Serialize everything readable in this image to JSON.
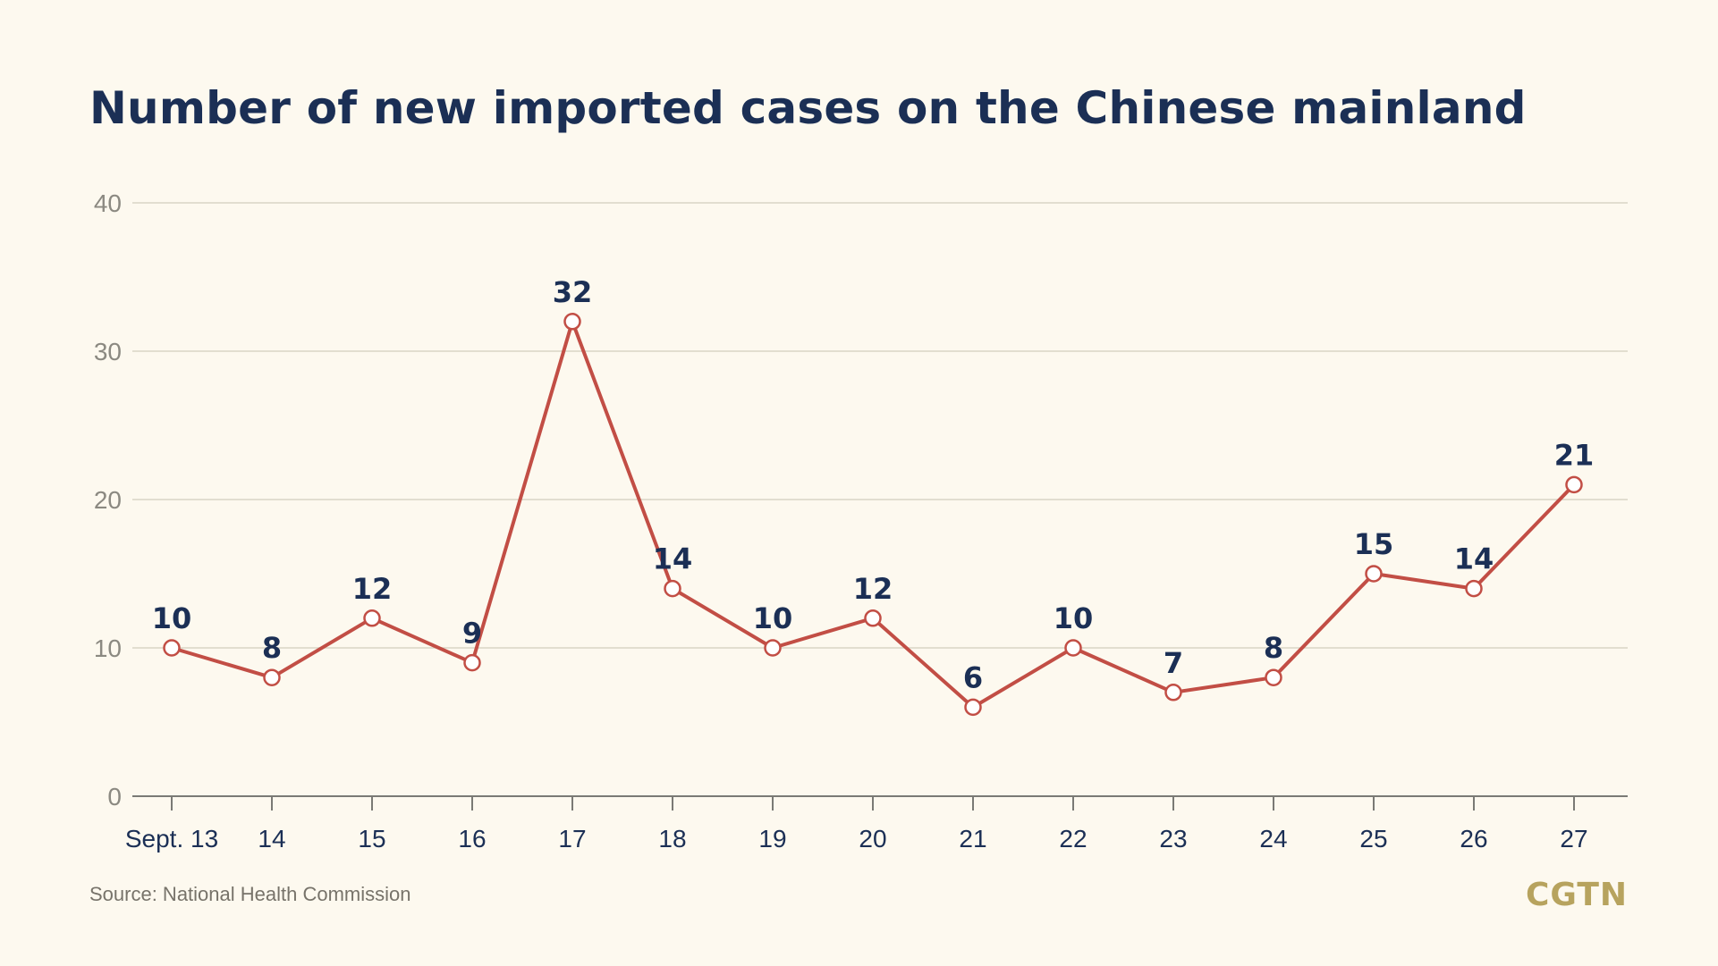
{
  "title": "Number of new imported cases on the Chinese mainland",
  "source": "Source: National Health Commission",
  "logo": "CGTN",
  "colors": {
    "background": "#fdf9ef",
    "title": "#1b2f55",
    "line": "#c24e45",
    "logo": "#b7a35e",
    "grid": "#d9d6c6"
  },
  "chart_data": {
    "type": "line",
    "title": "Number of new imported cases on the Chinese mainland",
    "xlabel": "",
    "ylabel": "",
    "categories": [
      "Sept. 13",
      "14",
      "15",
      "16",
      "17",
      "18",
      "19",
      "20",
      "21",
      "22",
      "23",
      "24",
      "25",
      "26",
      "27"
    ],
    "series": [
      {
        "values": [
          10,
          8,
          12,
          9,
          32,
          14,
          10,
          12,
          6,
          10,
          7,
          8,
          15,
          14,
          21
        ]
      }
    ],
    "data_labels": [
      "10",
      "8",
      "12",
      "9",
      "32",
      "14",
      "10",
      "12",
      "6",
      "10",
      "7",
      "8",
      "15",
      "14",
      "21"
    ],
    "ylim": [
      0,
      40
    ],
    "yticks": [
      0,
      10,
      20,
      30,
      40
    ],
    "grid": true,
    "legend": "none"
  }
}
